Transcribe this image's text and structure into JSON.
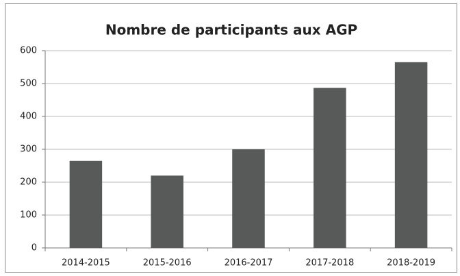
{
  "chart_data": {
    "type": "bar",
    "title": "Nombre de participants aux AGP",
    "categories": [
      "2014-2015",
      "2015-2016",
      "2016-2017",
      "2017-2018",
      "2018-2019"
    ],
    "values": [
      265,
      220,
      300,
      487,
      565
    ],
    "color": "#585a59",
    "ylim": [
      0,
      600
    ],
    "yticks": [
      0,
      100,
      200,
      300,
      400,
      500,
      600
    ],
    "grid": true
  }
}
